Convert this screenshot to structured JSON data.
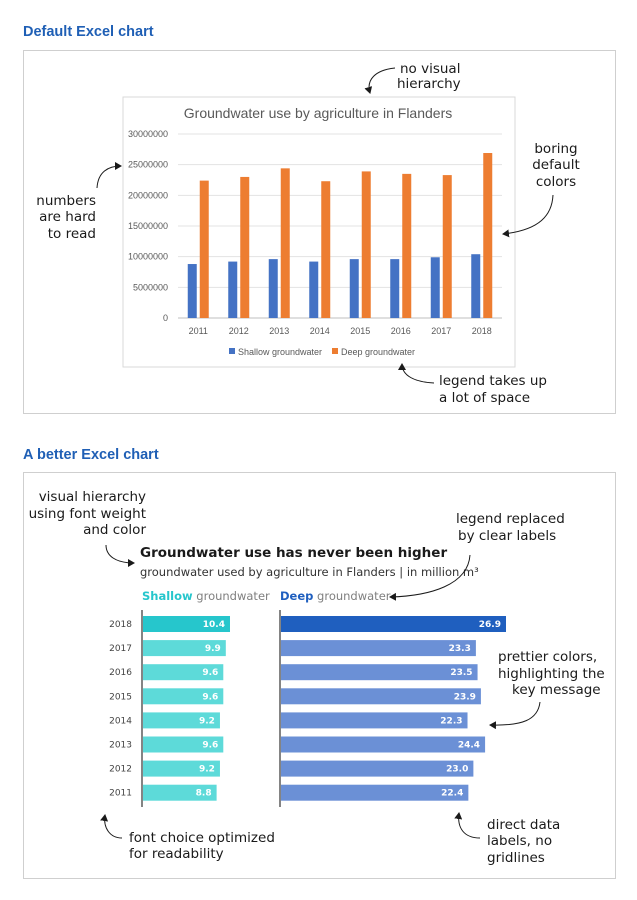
{
  "top_heading": "Default Excel chart",
  "bottom_heading": "A better Excel chart",
  "annotations": {
    "no_hierarchy": [
      "no visual",
      "hierarchy"
    ],
    "hard_numbers": [
      "numbers",
      "are hard",
      "to read"
    ],
    "boring_colors": [
      "boring",
      "default",
      "colors"
    ],
    "legend_space": [
      "legend takes up",
      "a lot of space"
    ],
    "hierarchy_font": [
      "visual hierarchy",
      "using font weight",
      "and color"
    ],
    "legend_replaced": [
      "legend replaced",
      "by clear labels"
    ],
    "prettier": [
      "prettier colors,",
      "highlighting the",
      "key message"
    ],
    "font_choice": [
      "font choice optimized",
      "for readability"
    ],
    "direct_labels": [
      "direct data",
      "labels, no",
      "gridlines"
    ]
  },
  "colors": {
    "heading_blue": "#1f5fb5",
    "excel_shallow": "#4472c4",
    "excel_deep": "#ed7d31",
    "shallow_highlight": "#26c6cc",
    "shallow_other": "#5ddad9",
    "deep_highlight": "#1f5fbf",
    "deep_other": "#6b90d6"
  },
  "better_labels": {
    "title": "Groundwater use has never been higher",
    "subtitle": "groundwater used by agriculture in Flanders | in million m³",
    "shallow_bold": "Shallow",
    "shallow_rest": " groundwater",
    "deep_bold": "Deep",
    "deep_rest": " groundwater"
  },
  "chart_data": [
    {
      "type": "bar",
      "title": "Groundwater use by agriculture in Flanders",
      "categories": [
        "2011",
        "2012",
        "2013",
        "2014",
        "2015",
        "2016",
        "2017",
        "2018"
      ],
      "series": [
        {
          "name": "Shallow groundwater",
          "values": [
            8800000,
            9200000,
            9600000,
            9200000,
            9600000,
            9600000,
            9900000,
            10400000
          ]
        },
        {
          "name": "Deep groundwater",
          "values": [
            22400000,
            23000000,
            24400000,
            22300000,
            23900000,
            23500000,
            23300000,
            26900000
          ]
        }
      ],
      "y_ticks": [
        "0",
        "5000000",
        "10000000",
        "15000000",
        "20000000",
        "25000000",
        "30000000"
      ],
      "ylim": [
        0,
        30000000
      ],
      "grid": true,
      "legend": "bottom"
    },
    {
      "type": "bar",
      "orientation": "horizontal",
      "title": "Groundwater use has never been higher",
      "subtitle": "groundwater used by agriculture in Flanders | in million m³",
      "categories": [
        "2018",
        "2017",
        "2016",
        "2015",
        "2014",
        "2013",
        "2012",
        "2011"
      ],
      "series": [
        {
          "name": "Shallow groundwater",
          "values": [
            10.4,
            9.9,
            9.6,
            9.6,
            9.2,
            9.6,
            9.2,
            8.8
          ]
        },
        {
          "name": "Deep groundwater",
          "values": [
            26.9,
            23.3,
            23.5,
            23.9,
            22.3,
            24.4,
            23.0,
            22.4
          ]
        }
      ],
      "value_labels": {
        "shallow": [
          "10.4",
          "9.9",
          "9.6",
          "9.6",
          "9.2",
          "9.6",
          "9.2",
          "8.8"
        ],
        "deep": [
          "26.9",
          "23.3",
          "23.5",
          "23.9",
          "22.3",
          "24.4",
          "23.0",
          "22.4"
        ]
      },
      "highlight": "2018",
      "grid": false,
      "legend": "none"
    }
  ]
}
